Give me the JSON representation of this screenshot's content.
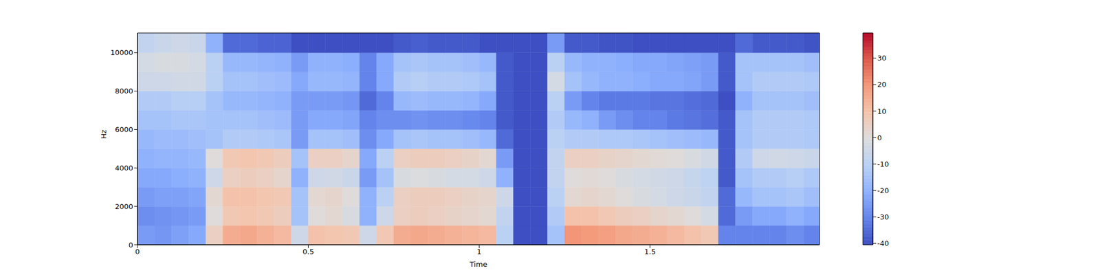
{
  "chart_data": {
    "type": "heatmap",
    "xlabel": "Time",
    "ylabel": "Hz",
    "xlim": [
      0,
      1.996
    ],
    "ylim": [
      0,
      11025
    ],
    "xticks": [
      0,
      0.5,
      1,
      1.5
    ],
    "yticks": [
      0,
      2000,
      4000,
      6000,
      8000,
      10000
    ],
    "x_edges": [
      0,
      0.05,
      0.1,
      0.15,
      0.2,
      0.25,
      0.3,
      0.35,
      0.4,
      0.45,
      0.5,
      0.55,
      0.6,
      0.65,
      0.7,
      0.75,
      0.8,
      0.85,
      0.9,
      0.95,
      1.0,
      1.05,
      1.1,
      1.15,
      1.2,
      1.25,
      1.3,
      1.35,
      1.4,
      1.45,
      1.5,
      1.55,
      1.6,
      1.65,
      1.7,
      1.75,
      1.8,
      1.85,
      1.9,
      1.95,
      1.996
    ],
    "y_edges": [
      0,
      1000,
      2000,
      3000,
      4000,
      5000,
      6000,
      7000,
      8000,
      9000,
      10000,
      11025
    ],
    "cells": [
      [
        -25,
        -26,
        -24,
        -22,
        5,
        15,
        16,
        14,
        12,
        -5,
        10,
        9,
        8,
        -5,
        8,
        15,
        16,
        15,
        14,
        13,
        12,
        -10,
        -40,
        -40,
        -15,
        20,
        19,
        18,
        16,
        15,
        14,
        12,
        10,
        8,
        -30,
        -30,
        -30,
        -30,
        -28,
        -30
      ],
      [
        -28,
        -27,
        -26,
        -25,
        0,
        8,
        9,
        8,
        6,
        -15,
        0,
        2,
        -2,
        -20,
        -5,
        5,
        6,
        5,
        4,
        3,
        2,
        -8,
        -40,
        -40,
        -12,
        10,
        10,
        8,
        6,
        5,
        3,
        2,
        0,
        -3,
        -35,
        -25,
        -22,
        -22,
        -20,
        -22
      ],
      [
        -25,
        -24,
        -24,
        -23,
        2,
        10,
        10,
        9,
        8,
        -15,
        2,
        3,
        0,
        -20,
        -10,
        5,
        6,
        6,
        5,
        4,
        3,
        -5,
        -40,
        -40,
        -10,
        2,
        3,
        2,
        0,
        -2,
        -3,
        -5,
        -6,
        -8,
        -35,
        -18,
        -15,
        -15,
        -14,
        -16
      ],
      [
        -22,
        -22,
        -21,
        -20,
        -5,
        5,
        6,
        5,
        3,
        -20,
        -5,
        -4,
        -6,
        -25,
        -15,
        -2,
        -1,
        -2,
        -3,
        -3,
        -5,
        -20,
        -40,
        -40,
        -8,
        0,
        1,
        0,
        -2,
        -3,
        -4,
        -5,
        -7,
        -9,
        -38,
        -15,
        -12,
        -12,
        -11,
        -13
      ],
      [
        -20,
        -19,
        -19,
        -18,
        0,
        8,
        9,
        8,
        6,
        -15,
        5,
        5,
        3,
        -22,
        -10,
        5,
        6,
        6,
        5,
        4,
        2,
        -25,
        -40,
        -40,
        -8,
        5,
        5,
        4,
        3,
        2,
        1,
        0,
        -2,
        -4,
        -38,
        -12,
        -5,
        -4,
        -5,
        -6
      ],
      [
        -18,
        -17,
        -17,
        -16,
        -15,
        -12,
        -12,
        -13,
        -14,
        -25,
        -15,
        -15,
        -16,
        -28,
        -22,
        -15,
        -14,
        -15,
        -15,
        -16,
        -18,
        -35,
        -40,
        -40,
        -10,
        -12,
        -12,
        -13,
        -13,
        -14,
        -15,
        -16,
        -17,
        -18,
        -38,
        -15,
        -12,
        -12,
        -12,
        -13
      ],
      [
        -15,
        -15,
        -14,
        -14,
        -15,
        -15,
        -15,
        -16,
        -17,
        -25,
        -22,
        -22,
        -23,
        -30,
        -28,
        -28,
        -27,
        -28,
        -28,
        -29,
        -30,
        -38,
        -40,
        -40,
        -12,
        -18,
        -20,
        -25,
        -28,
        -30,
        -30,
        -32,
        -33,
        -34,
        -38,
        -15,
        -12,
        -12,
        -12,
        -13
      ],
      [
        -12,
        -12,
        -11,
        -11,
        -15,
        -18,
        -18,
        -19,
        -20,
        -25,
        -25,
        -25,
        -26,
        -35,
        -30,
        -18,
        -17,
        -18,
        -18,
        -19,
        -22,
        -38,
        -40,
        -40,
        -10,
        -25,
        -30,
        -32,
        -32,
        -32,
        -33,
        -33,
        -34,
        -35,
        -40,
        -20,
        -15,
        -15,
        -15,
        -16
      ],
      [
        -5,
        -5,
        -4,
        -4,
        -10,
        -15,
        -15,
        -16,
        -17,
        -22,
        -18,
        -18,
        -19,
        -30,
        -22,
        -12,
        -11,
        -12,
        -12,
        -13,
        -15,
        -38,
        -40,
        -40,
        -3,
        -15,
        -18,
        -20,
        -20,
        -21,
        -22,
        -22,
        -23,
        -25,
        -38,
        -15,
        -12,
        -12,
        -12,
        -13
      ],
      [
        -3,
        -2,
        -2,
        -3,
        -10,
        -18,
        -18,
        -19,
        -20,
        -25,
        -20,
        -20,
        -21,
        -30,
        -22,
        -15,
        -14,
        -15,
        -15,
        -16,
        -18,
        -38,
        -40,
        -40,
        -10,
        -18,
        -20,
        -20,
        -21,
        -22,
        -22,
        -23,
        -24,
        -25,
        -38,
        -15,
        -15,
        -15,
        -15,
        -16
      ],
      [
        -8,
        -6,
        -5,
        -6,
        -20,
        -35,
        -35,
        -36,
        -36,
        -40,
        -40,
        -40,
        -40,
        -40,
        -40,
        -38,
        -37,
        -38,
        -38,
        -38,
        -40,
        -40,
        -40,
        -40,
        -25,
        -38,
        -38,
        -39,
        -39,
        -40,
        -40,
        -40,
        -40,
        -40,
        -40,
        -35,
        -38,
        -38,
        -38,
        -39
      ]
    ],
    "colorbar": {
      "range": [
        -40.5,
        39.5
      ],
      "ticks": [
        -40,
        -30,
        -20,
        -10,
        0,
        10,
        20,
        30
      ]
    }
  }
}
